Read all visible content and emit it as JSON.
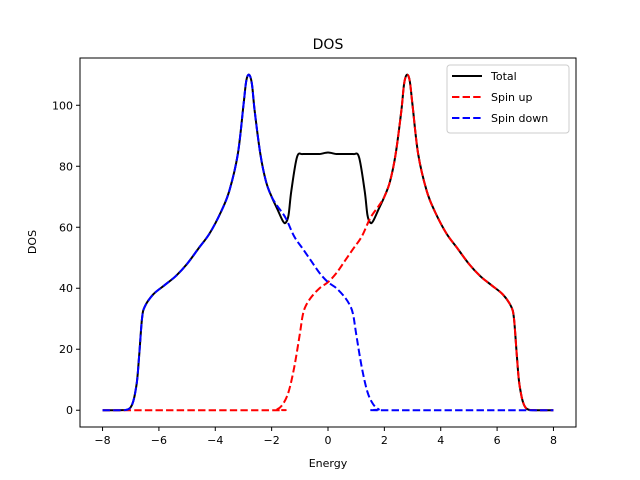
{
  "chart_data": {
    "type": "line",
    "title": "DOS",
    "xlabel": "Energy",
    "ylabel": "DOS",
    "xlim": [
      -8.8,
      8.8
    ],
    "ylim": [
      -5.5,
      115.5
    ],
    "xticks": [
      -8,
      -6,
      -4,
      -2,
      0,
      2,
      4,
      6,
      8
    ],
    "xtick_labels": [
      "−8",
      "−6",
      "−4",
      "−2",
      "0",
      "2",
      "4",
      "6",
      "8"
    ],
    "yticks": [
      0,
      20,
      40,
      60,
      80,
      100
    ],
    "ytick_labels": [
      "0",
      "20",
      "40",
      "60",
      "80",
      "100"
    ],
    "grid": false,
    "legend_position": "top-right",
    "series": [
      {
        "name": "Total",
        "color": "#000000",
        "dash": "solid",
        "x": [
          -8.0,
          -7.4,
          -7.0,
          -6.8,
          -6.7,
          -6.6,
          -6.5,
          -6.2,
          -5.8,
          -5.4,
          -5.0,
          -4.6,
          -4.2,
          -3.8,
          -3.5,
          -3.2,
          -3.0,
          -2.9,
          -2.8,
          -2.7,
          -2.6,
          -2.4,
          -2.2,
          -2.0,
          -1.8,
          -1.6,
          -1.5,
          -1.4,
          -1.3,
          -1.1,
          -0.9,
          -0.6,
          -0.3,
          0.0,
          0.3,
          0.6,
          0.9,
          1.1,
          1.3,
          1.4,
          1.5,
          1.6,
          1.8,
          2.0,
          2.2,
          2.4,
          2.6,
          2.7,
          2.8,
          2.9,
          3.0,
          3.2,
          3.5,
          3.8,
          4.2,
          4.6,
          5.0,
          5.4,
          5.8,
          6.2,
          6.5,
          6.6,
          6.7,
          6.8,
          7.0,
          7.4,
          8.0
        ],
        "y": [
          0,
          0,
          1,
          8,
          18,
          30,
          34,
          38,
          41,
          44,
          48,
          53,
          58,
          65,
          72,
          84,
          100,
          108,
          110,
          107,
          98,
          84,
          75,
          70,
          66,
          62,
          61.5,
          64,
          72,
          83,
          84,
          84,
          84,
          84.5,
          84,
          84,
          84,
          83,
          72,
          64,
          61.5,
          62,
          66,
          70,
          75,
          84,
          98,
          107,
          110,
          108,
          100,
          84,
          72,
          65,
          58,
          53,
          48,
          44,
          41,
          38,
          34,
          30,
          18,
          8,
          1,
          0,
          0
        ]
      },
      {
        "name": "Spin up",
        "color": "#ff0000",
        "dash": "dashed",
        "x": [
          -8.0,
          -2.0,
          -1.8,
          -1.6,
          -1.4,
          -1.2,
          -1.0,
          -0.9,
          -0.8,
          -0.6,
          -0.3,
          0.0,
          0.3,
          0.6,
          0.9,
          1.2,
          1.5,
          1.8,
          2.0,
          2.2,
          2.4,
          2.6,
          2.7,
          2.8,
          2.9,
          3.0,
          3.2,
          3.5,
          3.8,
          4.2,
          4.6,
          5.0,
          5.4,
          5.8,
          6.2,
          6.5,
          6.6,
          6.7,
          6.8,
          7.0,
          7.4,
          8.0
        ],
        "y": [
          0,
          0,
          0.3,
          2,
          6,
          14,
          25,
          31,
          34,
          37,
          40,
          42,
          45,
          49,
          53,
          57,
          63,
          67,
          70,
          75,
          84,
          98,
          107,
          110,
          108,
          100,
          84,
          72,
          65,
          58,
          53,
          48,
          44,
          41,
          38,
          34,
          30,
          18,
          8,
          1,
          0,
          0
        ]
      },
      {
        "name": "Spin down",
        "color": "#0000ff",
        "dash": "dashed",
        "x": [
          -8.0,
          -7.4,
          -7.0,
          -6.8,
          -6.7,
          -6.6,
          -6.5,
          -6.2,
          -5.8,
          -5.4,
          -5.0,
          -4.6,
          -4.2,
          -3.8,
          -3.5,
          -3.2,
          -3.0,
          -2.9,
          -2.8,
          -2.7,
          -2.6,
          -2.4,
          -2.2,
          -2.0,
          -1.8,
          -1.5,
          -1.2,
          -0.9,
          -0.6,
          -0.3,
          0.0,
          0.3,
          0.6,
          0.8,
          0.9,
          1.0,
          1.2,
          1.4,
          1.6,
          1.8,
          2.0,
          8.0
        ],
        "y": [
          0,
          0,
          1,
          8,
          18,
          30,
          34,
          38,
          41,
          44,
          48,
          53,
          58,
          65,
          72,
          84,
          100,
          108,
          110,
          107,
          98,
          84,
          75,
          70,
          67,
          63,
          57,
          53,
          49,
          45,
          42,
          40,
          37,
          34,
          31,
          25,
          14,
          6,
          2,
          0.3,
          0,
          0
        ]
      }
    ]
  }
}
